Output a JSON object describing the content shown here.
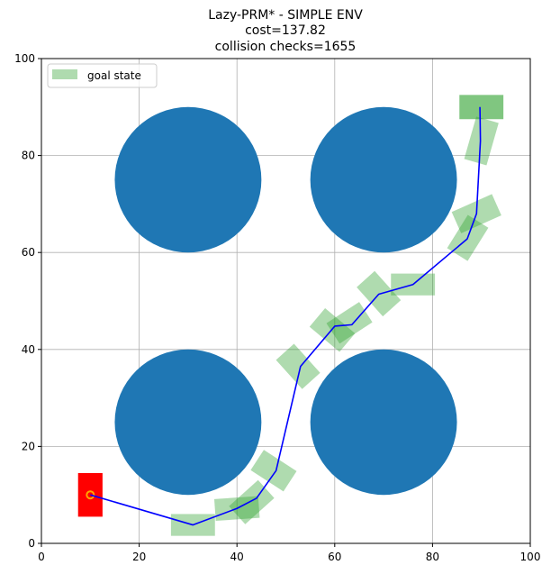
{
  "chart_data": {
    "type": "scatter",
    "title_lines": [
      "Lazy-PRM* - SIMPLE ENV",
      "cost=137.82",
      "collision checks=1655"
    ],
    "xlabel": "",
    "ylabel": "",
    "xlim": [
      0,
      100
    ],
    "ylim": [
      0,
      100
    ],
    "xticks": [
      0,
      20,
      40,
      60,
      80,
      100
    ],
    "yticks": [
      0,
      20,
      40,
      60,
      80,
      100
    ],
    "grid": true,
    "legend": {
      "position": "top-left",
      "label": "goal state"
    },
    "obstacles": [
      {
        "cx": 30,
        "cy": 75,
        "r": 15
      },
      {
        "cx": 70,
        "cy": 75,
        "r": 15
      },
      {
        "cx": 30,
        "cy": 25,
        "r": 15
      },
      {
        "cx": 70,
        "cy": 25,
        "r": 15
      }
    ],
    "start_state": {
      "cx": 10,
      "cy": 10,
      "w": 5,
      "h": 9,
      "angle": 0
    },
    "goal_state": {
      "cx": 90,
      "cy": 90,
      "w": 9,
      "h": 5,
      "angle": 0
    },
    "path": [
      [
        10,
        10
      ],
      [
        31,
        3.8
      ],
      [
        40,
        7.2
      ],
      [
        44,
        9.3
      ],
      [
        48,
        15
      ],
      [
        53,
        36.5
      ],
      [
        60,
        44.8
      ],
      [
        63.5,
        45.1
      ],
      [
        69,
        51.4
      ],
      [
        76,
        53.4
      ],
      [
        87.1,
        62.8
      ],
      [
        89,
        68
      ],
      [
        89.8,
        83
      ],
      [
        89.7,
        90
      ]
    ],
    "states": [
      {
        "cx": 31,
        "cy": 3.8,
        "w": 9,
        "h": 4.5,
        "angle": 0
      },
      {
        "cx": 40,
        "cy": 7.2,
        "w": 9,
        "h": 4.5,
        "angle": 4
      },
      {
        "cx": 43,
        "cy": 8.5,
        "w": 8,
        "h": 5,
        "angle": 42
      },
      {
        "cx": 47.5,
        "cy": 15,
        "w": 8,
        "h": 5,
        "angle": -33
      },
      {
        "cx": 52.5,
        "cy": 36.5,
        "w": 8,
        "h": 5,
        "angle": -48
      },
      {
        "cx": 59.5,
        "cy": 44,
        "w": 8,
        "h": 5,
        "angle": -40
      },
      {
        "cx": 63,
        "cy": 45.5,
        "w": 8,
        "h": 5,
        "angle": 33
      },
      {
        "cx": 69,
        "cy": 51.5,
        "w": 8,
        "h": 5,
        "angle": -48
      },
      {
        "cx": 76,
        "cy": 53.4,
        "w": 9,
        "h": 4.5,
        "angle": 0
      },
      {
        "cx": 87.2,
        "cy": 63,
        "w": 8,
        "h": 5,
        "angle": 58
      },
      {
        "cx": 89,
        "cy": 68,
        "w": 9,
        "h": 4.8,
        "angle": 24
      },
      {
        "cx": 90,
        "cy": 83,
        "w": 9,
        "h": 4.8,
        "angle": 74
      }
    ],
    "colors": {
      "obstacle": "#1f77b4",
      "path": "#0000ff",
      "state": "#2ca02c",
      "start": "#ff0000",
      "start_marker": "#ffa500",
      "grid": "#b0b0b0"
    }
  }
}
